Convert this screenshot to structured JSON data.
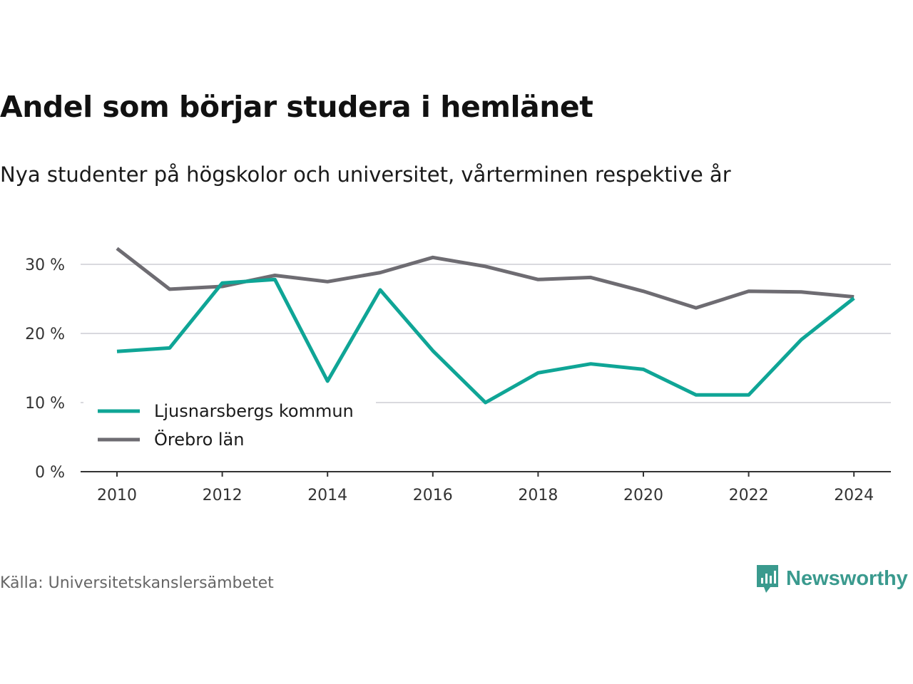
{
  "title": "Andel som börjar studera i hemlänet",
  "subtitle": "Nya studenter på högskolor och universitet, vårterminen respektive år",
  "source": "Källa: Universitetskanslersämbetet",
  "brand": {
    "name": "Newsworthy",
    "icon": "newsworthy-logo-icon",
    "color": "#3a9a8e"
  },
  "chart_data": {
    "type": "line",
    "x": [
      2010,
      2011,
      2012,
      2013,
      2014,
      2015,
      2016,
      2017,
      2018,
      2019,
      2020,
      2021,
      2022,
      2023,
      2024
    ],
    "series": [
      {
        "name": "Ljusnarsbergs kommun",
        "color": "#0fa596",
        "values": [
          17.4,
          17.9,
          27.3,
          27.8,
          13.1,
          26.3,
          17.5,
          10.0,
          14.3,
          15.6,
          14.8,
          11.1,
          11.1,
          19.1,
          25.1
        ]
      },
      {
        "name": "Örebro län",
        "color": "#6e6c72",
        "values": [
          32.3,
          26.4,
          26.8,
          28.4,
          27.5,
          28.8,
          31.0,
          29.7,
          27.8,
          28.1,
          26.1,
          23.7,
          26.1,
          26.0,
          25.3
        ]
      }
    ],
    "xticks": [
      "2010",
      "2012",
      "2014",
      "2016",
      "2018",
      "2020",
      "2022",
      "2024"
    ],
    "yticks": [
      "0 %",
      "10 %",
      "20 %",
      "30 %"
    ],
    "ylim": [
      0,
      34
    ],
    "grid": true,
    "legend_position": "bottom-left"
  }
}
